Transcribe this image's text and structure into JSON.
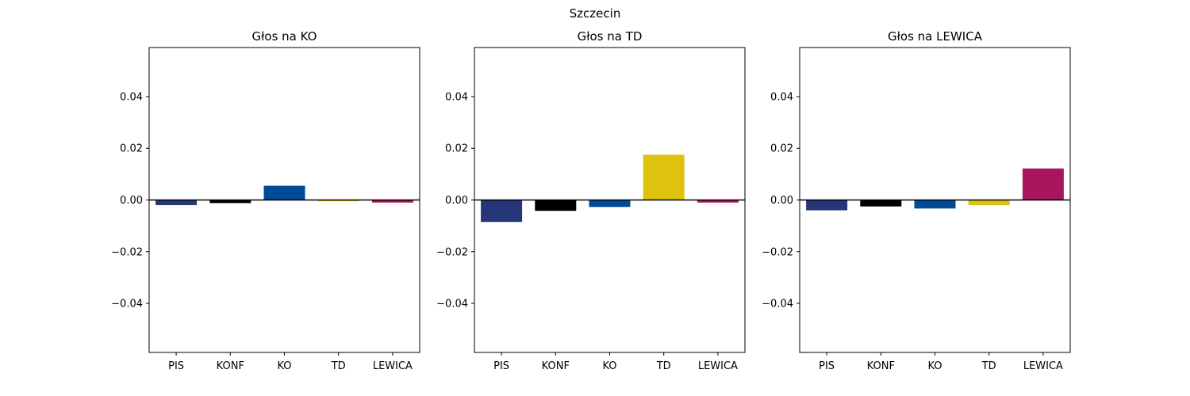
{
  "figure": {
    "suptitle": "Szczecin"
  },
  "colors": {
    "PIS": "#263778",
    "KONF": "#000000",
    "KO": "#004a98",
    "TD": "#ddc20e",
    "LEWICA": "#a8175b"
  },
  "chart_data": [
    {
      "type": "bar",
      "title": "Głos na KO",
      "categories": [
        "PIS",
        "KONF",
        "KO",
        "TD",
        "LEWICA"
      ],
      "values": [
        -0.002,
        -0.0012,
        0.0055,
        -0.0005,
        -0.001
      ],
      "ylim": [
        -0.059,
        0.059
      ],
      "yticks": [
        -0.04,
        -0.02,
        0.0,
        0.02,
        0.04
      ],
      "ytick_labels": [
        "−0.04",
        "−0.02",
        "0.00",
        "0.02",
        "0.04"
      ],
      "xlabel": "",
      "ylabel": "",
      "grid": false,
      "legend": "none",
      "zero_line": true
    },
    {
      "type": "bar",
      "title": "Głos na TD",
      "categories": [
        "PIS",
        "KONF",
        "KO",
        "TD",
        "LEWICA"
      ],
      "values": [
        -0.0085,
        -0.0042,
        -0.0027,
        0.0175,
        -0.001
      ],
      "ylim": [
        -0.059,
        0.059
      ],
      "yticks": [
        -0.04,
        -0.02,
        0.0,
        0.02,
        0.04
      ],
      "ytick_labels": [
        "−0.04",
        "−0.02",
        "0.00",
        "0.02",
        "0.04"
      ],
      "xlabel": "",
      "ylabel": "",
      "grid": false,
      "legend": "none",
      "zero_line": true
    },
    {
      "type": "bar",
      "title": "Głos na LEWICA",
      "categories": [
        "PIS",
        "KONF",
        "KO",
        "TD",
        "LEWICA"
      ],
      "values": [
        -0.004,
        -0.0025,
        -0.0033,
        -0.002,
        0.0122
      ],
      "ylim": [
        -0.059,
        0.059
      ],
      "yticks": [
        -0.04,
        -0.02,
        0.0,
        0.02,
        0.04
      ],
      "ytick_labels": [
        "−0.04",
        "−0.02",
        "0.00",
        "0.02",
        "0.04"
      ],
      "xlabel": "",
      "ylabel": "",
      "grid": false,
      "legend": "none",
      "zero_line": true
    }
  ]
}
